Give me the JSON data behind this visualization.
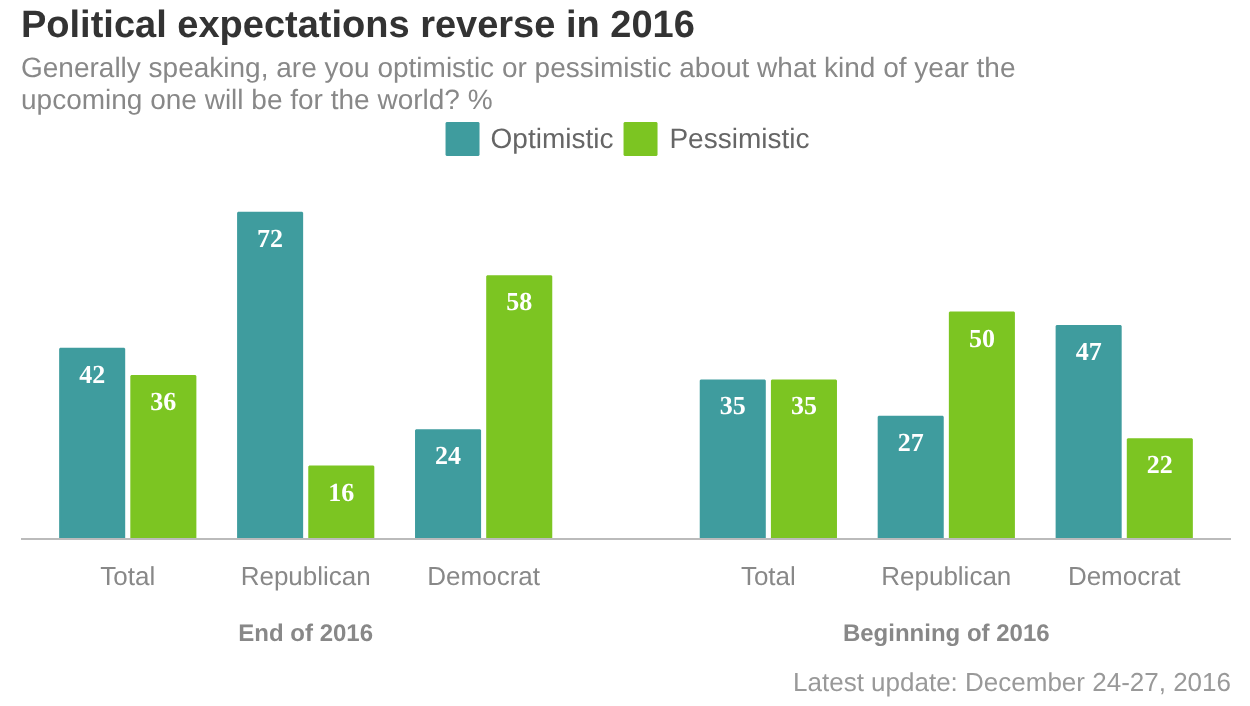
{
  "chart_data": {
    "type": "bar",
    "title": "Political expectations reverse in 2016",
    "subtitle": "Generally speaking, are you optimistic or pessimistic about what kind of year the upcoming one will be for the world? %",
    "categories": [
      "Total",
      "Republican",
      "Democrat",
      "Total",
      "Republican",
      "Democrat"
    ],
    "series": [
      {
        "name": "Optimistic",
        "color": "#3f9c9e",
        "values": [
          42,
          72,
          24,
          35,
          27,
          47
        ]
      },
      {
        "name": "Pessimistic",
        "color": "#7cc522",
        "values": [
          36,
          16,
          58,
          35,
          50,
          22
        ]
      }
    ],
    "annotations": [
      "End of 2016",
      "Beginning of 2016",
      "Latest update: December 24-27, 2016"
    ],
    "data_labels": true,
    "legend": "top"
  }
}
